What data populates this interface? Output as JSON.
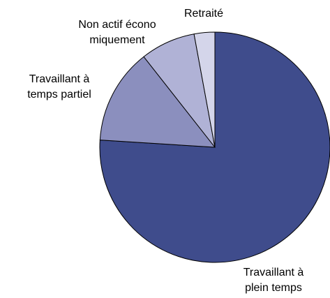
{
  "chart_data": {
    "type": "pie",
    "categories": [
      [
        "Travaillant à",
        "plein temps"
      ],
      [
        "Travaillant à",
        "temps partiel"
      ],
      [
        "Non actif écono",
        "miquement"
      ],
      [
        "Retraité"
      ]
    ],
    "values": [
      76,
      13.4,
      7.7,
      2.9
    ],
    "colors": [
      "#3f4c8c",
      "#8b8fbe",
      "#b0b2d6",
      "#d4d5ea"
    ]
  }
}
